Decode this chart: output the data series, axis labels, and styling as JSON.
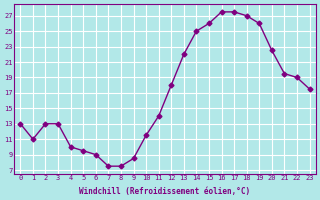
{
  "x": [
    0,
    1,
    2,
    3,
    4,
    5,
    6,
    7,
    8,
    9,
    10,
    11,
    12,
    13,
    14,
    15,
    16,
    17,
    18,
    19,
    20,
    21,
    22,
    23
  ],
  "y": [
    13,
    11,
    13,
    13,
    10,
    9.5,
    9,
    7.5,
    7.5,
    8.5,
    11.5,
    14,
    18,
    22,
    25,
    26,
    27.5,
    27.5,
    27,
    26,
    22.5,
    19.5,
    19,
    17.5
  ],
  "line_color": "#800080",
  "marker_color": "#800080",
  "bg_color": "#b2e8e8",
  "grid_color": "#ffffff",
  "xlabel": "Windchill (Refroidissement éolien,°C)",
  "yticks": [
    7,
    9,
    11,
    13,
    15,
    17,
    19,
    21,
    23,
    25,
    27
  ],
  "ylim": [
    6.5,
    28.5
  ],
  "xlim": [
    -0.5,
    23.5
  ],
  "tick_color": "#800080",
  "font_name": "monospace"
}
